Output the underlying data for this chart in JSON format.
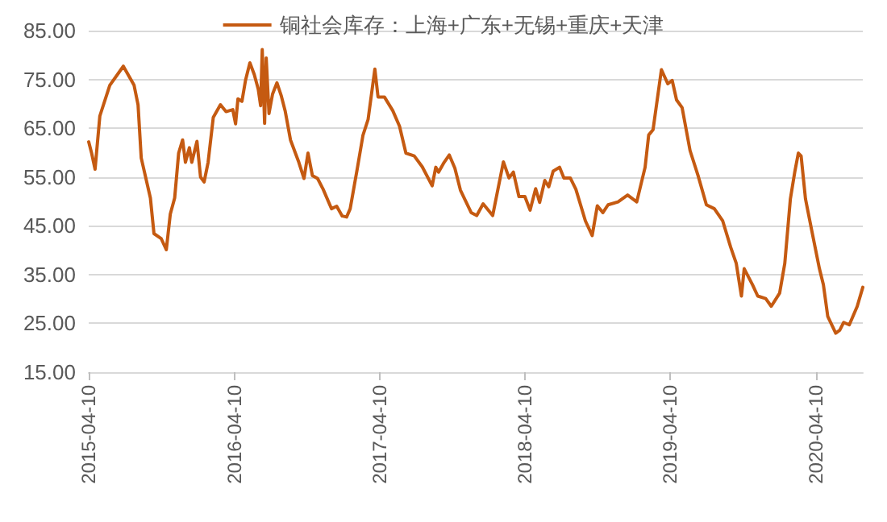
{
  "chart_data": {
    "type": "line",
    "legend": "top",
    "grid": "y",
    "marker": "none",
    "line_style": "solid",
    "ylim": [
      15,
      85
    ],
    "yticks": [
      {
        "value": 15,
        "label": "15.00"
      },
      {
        "value": 25,
        "label": "25.00"
      },
      {
        "value": 35,
        "label": "35.00"
      },
      {
        "value": 45,
        "label": "45.00"
      },
      {
        "value": 55,
        "label": "55.00"
      },
      {
        "value": 65,
        "label": "65.00"
      },
      {
        "value": 75,
        "label": "75.00"
      },
      {
        "value": 85,
        "label": "85.00"
      }
    ],
    "xlim": [
      "2015-04-10",
      "2020-08-06"
    ],
    "xticks": [
      "2015-04-10",
      "2016-04-10",
      "2017-04-10",
      "2018-04-10",
      "2019-04-10",
      "2020-04-10"
    ],
    "x": [
      "2015-04-10",
      "2015-04-17",
      "2015-04-26",
      "2015-05-08",
      "2015-06-02",
      "2015-07-06",
      "2015-08-02",
      "2015-08-12",
      "2015-08-20",
      "2015-09-12",
      "2015-09-21",
      "2015-10-09",
      "2015-10-22",
      "2015-11-01",
      "2015-11-12",
      "2015-11-22",
      "2015-12-02",
      "2015-12-09",
      "2015-12-19",
      "2015-12-25",
      "2016-01-07",
      "2016-01-16",
      "2016-01-25",
      "2016-02-04",
      "2016-02-17",
      "2016-03-06",
      "2016-03-20",
      "2016-04-06",
      "2016-04-13",
      "2016-04-19",
      "2016-04-29",
      "2016-05-08",
      "2016-05-19",
      "2016-05-30",
      "2016-06-09",
      "2016-06-15",
      "2016-06-19",
      "2016-06-25",
      "2016-06-29",
      "2016-07-06",
      "2016-07-15",
      "2016-07-26",
      "2016-08-06",
      "2016-08-16",
      "2016-08-29",
      "2016-09-19",
      "2016-10-02",
      "2016-10-12",
      "2016-10-23",
      "2016-11-05",
      "2016-11-19",
      "2016-12-10",
      "2016-12-23",
      "2017-01-06",
      "2017-01-17",
      "2017-01-26",
      "2017-02-13",
      "2017-02-27",
      "2017-03-12",
      "2017-03-29",
      "2017-04-06",
      "2017-04-22",
      "2017-05-13",
      "2017-05-30",
      "2017-06-15",
      "2017-07-06",
      "2017-07-26",
      "2017-08-20",
      "2017-08-29",
      "2017-09-05",
      "2017-09-19",
      "2017-10-02",
      "2017-10-16",
      "2017-10-30",
      "2017-11-26",
      "2017-12-10",
      "2017-12-26",
      "2018-01-19",
      "2018-02-15",
      "2018-03-01",
      "2018-03-12",
      "2018-03-26",
      "2018-04-10",
      "2018-04-23",
      "2018-05-07",
      "2018-05-17",
      "2018-05-30",
      "2018-06-09",
      "2018-06-20",
      "2018-07-06",
      "2018-07-17",
      "2018-08-02",
      "2018-08-16",
      "2018-09-09",
      "2018-09-26",
      "2018-10-09",
      "2018-10-23",
      "2018-11-05",
      "2018-11-30",
      "2018-12-24",
      "2019-01-16",
      "2019-02-06",
      "2019-02-15",
      "2019-02-26",
      "2019-03-19",
      "2019-04-04",
      "2019-04-15",
      "2019-04-26",
      "2019-05-10",
      "2019-05-30",
      "2019-06-19",
      "2019-07-10",
      "2019-07-30",
      "2019-08-20",
      "2019-09-09",
      "2019-09-23",
      "2019-10-06",
      "2019-10-13",
      "2019-11-03",
      "2019-11-16",
      "2019-12-06",
      "2019-12-20",
      "2020-01-10",
      "2020-01-23",
      "2020-02-06",
      "2020-02-17",
      "2020-02-26",
      "2020-03-04",
      "2020-03-15",
      "2020-03-31",
      "2020-04-19",
      "2020-04-29",
      "2020-05-10",
      "2020-05-30",
      "2020-06-09",
      "2020-06-19",
      "2020-07-03",
      "2020-07-23",
      "2020-08-06"
    ],
    "series": [
      {
        "name": "铜社会库存：上海+广东+无锡+重庆+天津",
        "color": "#c55a11",
        "values": [
          62.2,
          60,
          56.6,
          67.5,
          73.8,
          77.7,
          73.8,
          69.8,
          58.9,
          50.7,
          43.4,
          42.4,
          40.1,
          47.4,
          50.7,
          59.9,
          62.6,
          58,
          61,
          58,
          62.3,
          55,
          54,
          58,
          67.2,
          69.8,
          68.4,
          68.8,
          65.9,
          71,
          70.5,
          74.8,
          78.4,
          76,
          73,
          69.6,
          81.1,
          66,
          79.4,
          68,
          72,
          74.3,
          71.6,
          68.4,
          62.6,
          58,
          54.7,
          59.9,
          55.3,
          54.7,
          52.5,
          48.5,
          49,
          47,
          46.8,
          48.5,
          56.8,
          63.5,
          66.8,
          77.1,
          71.4,
          71.4,
          68.6,
          65.4,
          59.9,
          59.3,
          57.1,
          53.2,
          57,
          56,
          58,
          59.5,
          56.8,
          52.3,
          47.7,
          47.1,
          49.5,
          47.1,
          58.1,
          54.8,
          56,
          51,
          51,
          48.2,
          52.6,
          49.8,
          54.3,
          53,
          56.2,
          57,
          54.8,
          54.8,
          52.5,
          46,
          43,
          49.1,
          47.7,
          49.3,
          49.9,
          51.3,
          49.9,
          57,
          63.6,
          64.7,
          77,
          74.1,
          74.8,
          70.8,
          69.2,
          60.4,
          55.3,
          49.3,
          48.5,
          46,
          40.6,
          37.3,
          30.6,
          36.2,
          32.9,
          30.6,
          30.1,
          28.5,
          31.2,
          37.3,
          50.5,
          56,
          59.9,
          59.3,
          50.5,
          43.9,
          36.2,
          32.9,
          26.4,
          23,
          23.6,
          25.2,
          24.7,
          28.5,
          32.4
        ]
      }
    ]
  }
}
